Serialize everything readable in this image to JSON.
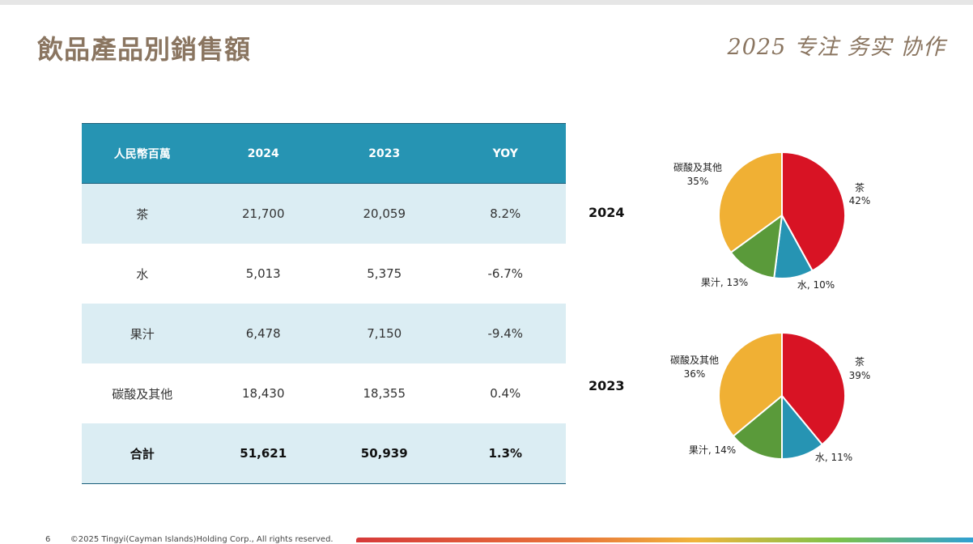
{
  "title": "飲品產品別銷售額",
  "slogan": "2025 专注 务实 协作",
  "table": {
    "headers": [
      "人民幣百萬",
      "2024",
      "2023",
      "YOY"
    ],
    "rows": [
      [
        "茶",
        "21,700",
        "20,059",
        "8.2%"
      ],
      [
        "水",
        "5,013",
        "5,375",
        "-6.7%"
      ],
      [
        "果汁",
        "6,478",
        "7,150",
        "-9.4%"
      ],
      [
        "碳酸及其他",
        "18,430",
        "18,355",
        "0.4%"
      ],
      [
        "合計",
        "51,621",
        "50,939",
        "1.3%"
      ]
    ]
  },
  "chart_data": [
    {
      "type": "pie",
      "year_label": "2024",
      "slices": [
        {
          "name": "茶",
          "value": 42,
          "label": "42%",
          "color": "#d81324"
        },
        {
          "name": "水",
          "value": 10,
          "label": "水, 10%",
          "color": "#2694b3"
        },
        {
          "name": "果汁",
          "value": 13,
          "label": "果汁, 13%",
          "color": "#5a9a3a"
        },
        {
          "name": "碳酸及其他",
          "value": 35,
          "label": "35%",
          "color": "#f0b034"
        }
      ]
    },
    {
      "type": "pie",
      "year_label": "2023",
      "slices": [
        {
          "name": "茶",
          "value": 39,
          "label": "39%",
          "color": "#d81324"
        },
        {
          "name": "水",
          "value": 11,
          "label": "水, 11%",
          "color": "#2694b3"
        },
        {
          "name": "果汁",
          "value": 14,
          "label": "果汁, 14%",
          "color": "#5a9a3a"
        },
        {
          "name": "碳酸及其他",
          "value": 36,
          "label": "36%",
          "color": "#f0b034"
        }
      ]
    }
  ],
  "footer": {
    "page_number": "6",
    "copyright": "©2025 Tingyi(Cayman Islands)Holding Corp., All rights reserved."
  }
}
